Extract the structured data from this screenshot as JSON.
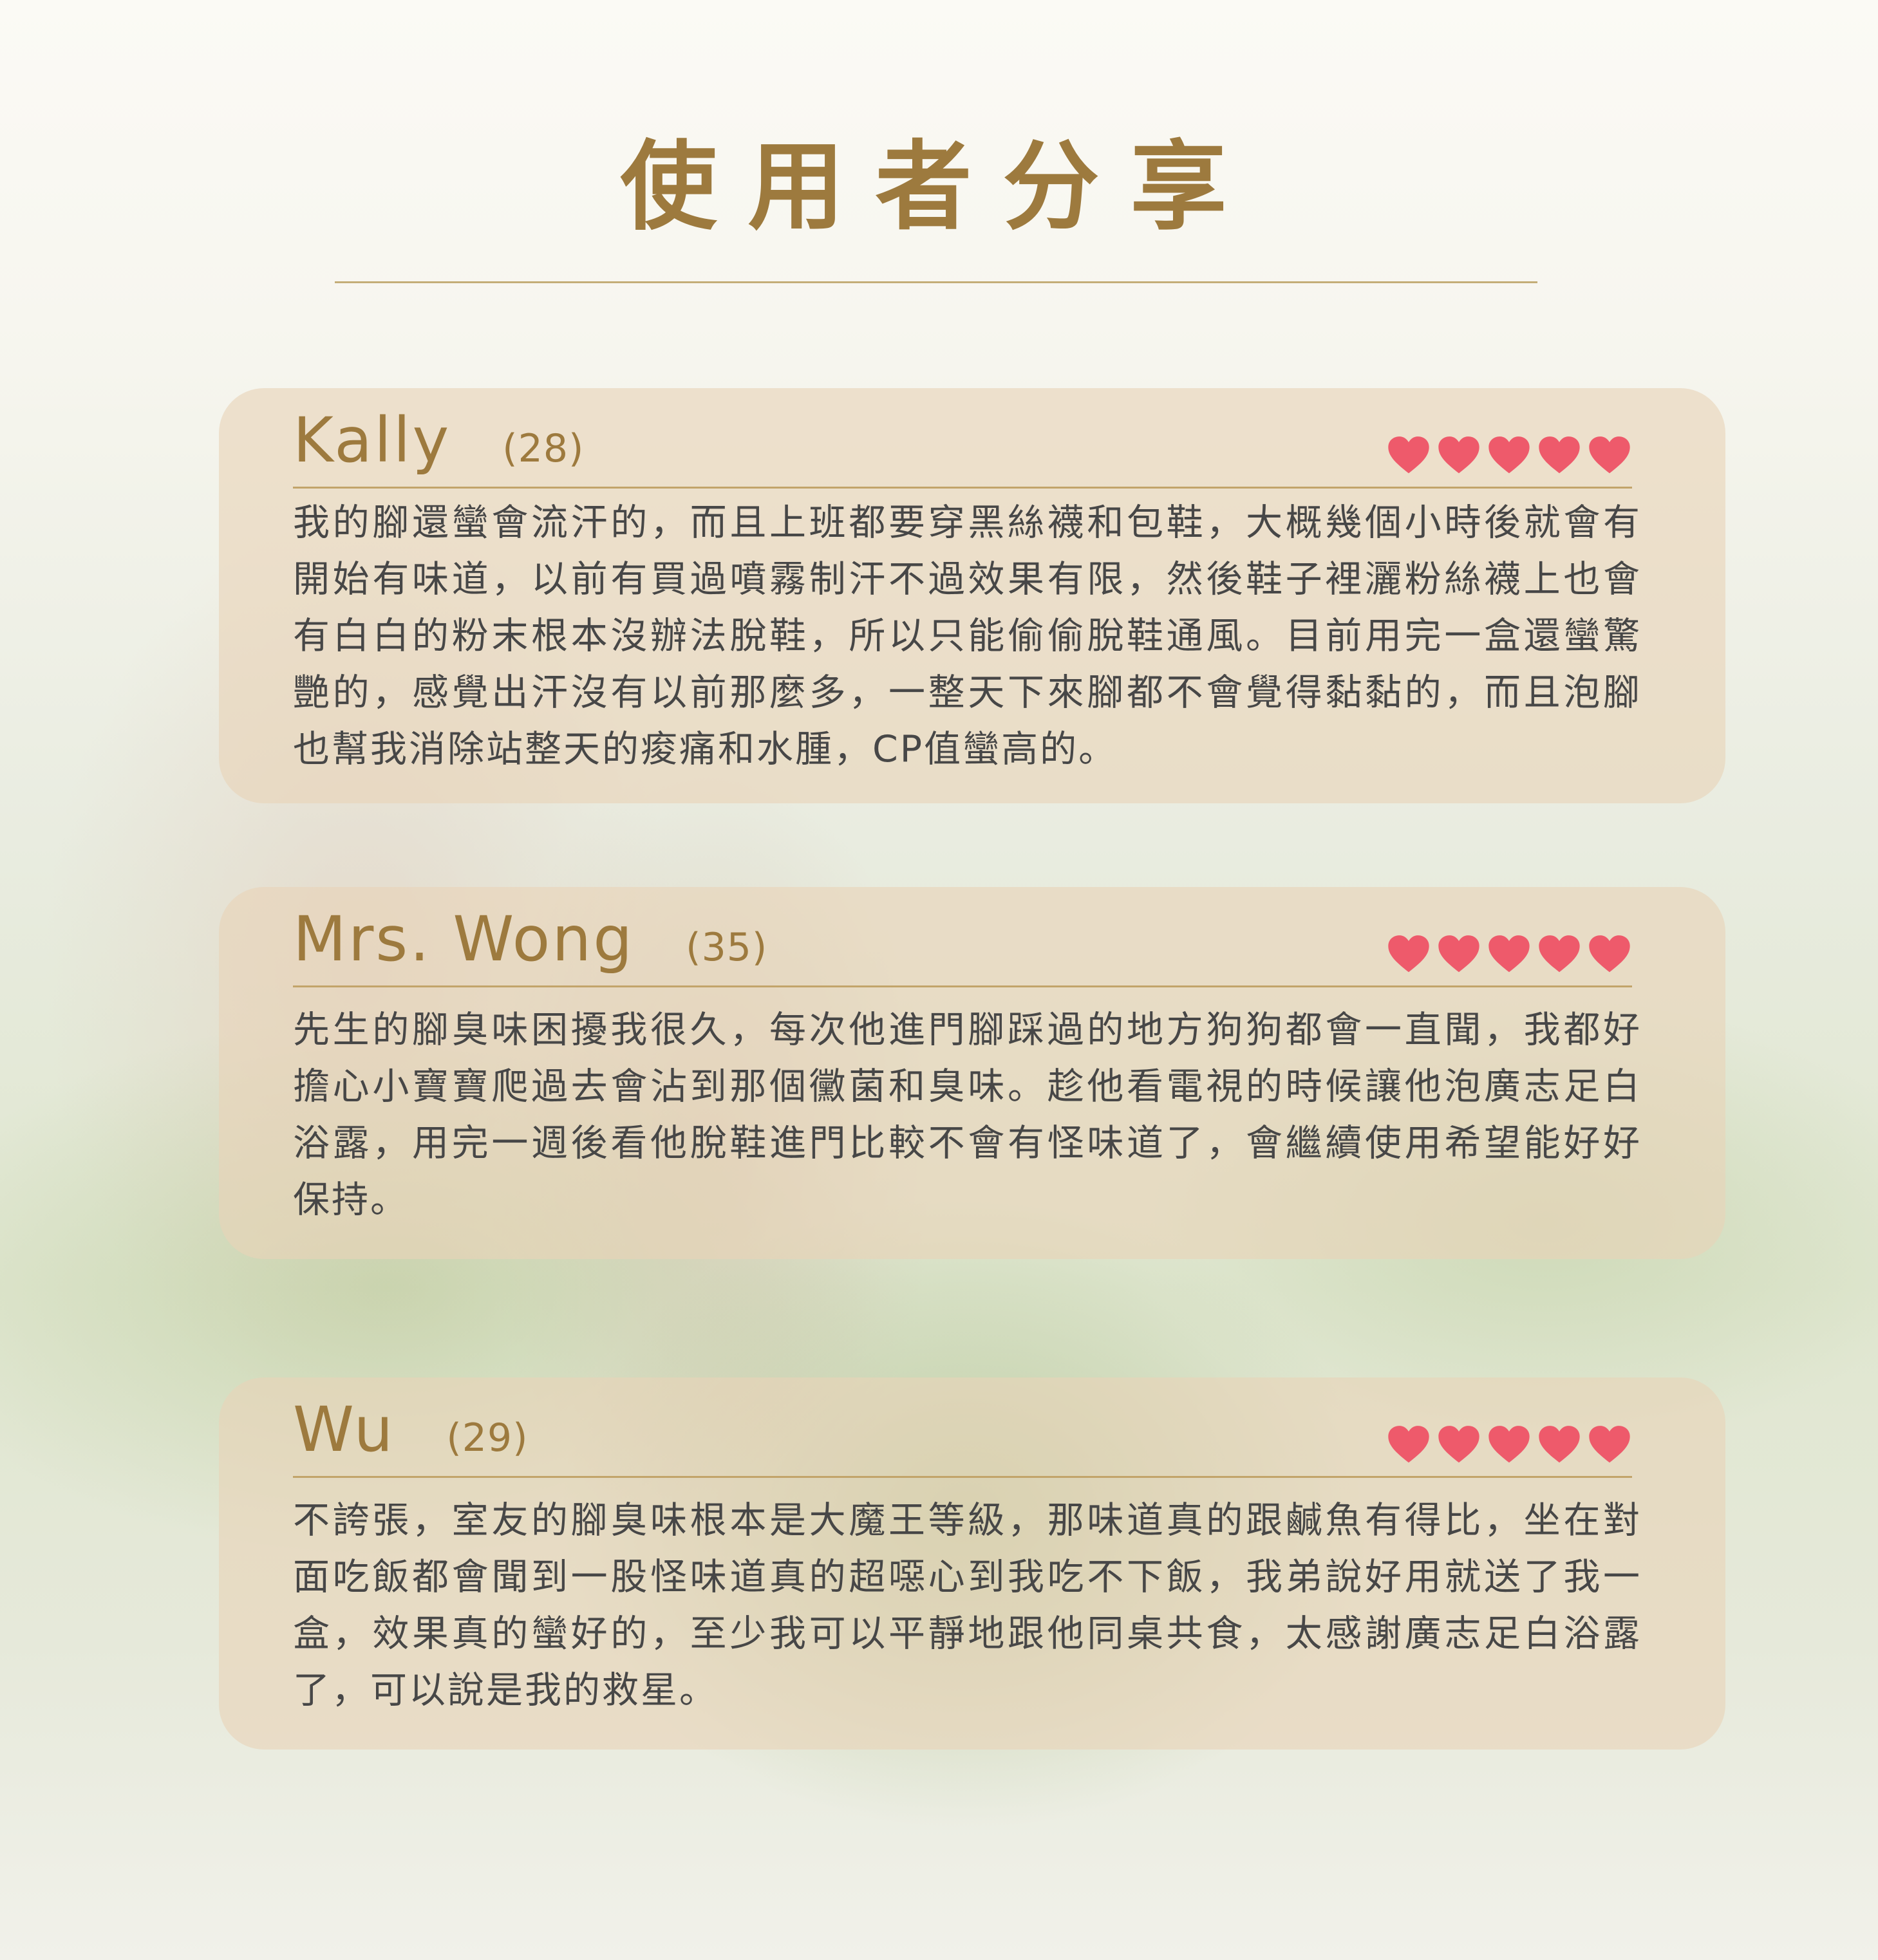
{
  "page": {
    "title": "使用者分享"
  },
  "colors": {
    "accent": "#9d7a3e",
    "heart": "#ee5a6b",
    "card": "#e8d4b8",
    "text": "#474747"
  },
  "reviews": [
    {
      "name": "Kally",
      "age": "(28)",
      "rating": 5,
      "icon": "heart-icon",
      "text": "我的腳還蠻會流汗的，而且上班都要穿黑絲襪和包鞋，大概幾個小時後就會有開始有味道，以前有買過噴霧制汗不過效果有限，然後鞋子裡灑粉絲襪上也會有白白的粉末根本沒辦法脫鞋，所以只能偷偷脫鞋通風。目前用完一盒還蠻驚艷的，感覺出汗沒有以前那麼多，一整天下來腳都不會覺得黏黏的，而且泡腳也幫我消除站整天的痠痛和水腫，CP值蠻高的。"
    },
    {
      "name": "Mrs. Wong",
      "age": "(35)",
      "rating": 5,
      "icon": "heart-icon",
      "text": "先生的腳臭味困擾我很久，每次他進門腳踩過的地方狗狗都會一直聞，我都好擔心小寶寶爬過去會沾到那個黴菌和臭味。趁他看電視的時候讓他泡廣志足白浴露，用完一週後看他脫鞋進門比較不會有怪味道了，會繼續使用希望能好好保持。"
    },
    {
      "name": "Wu",
      "age": "(29)",
      "rating": 5,
      "icon": "heart-icon",
      "text": "不誇張，室友的腳臭味根本是大魔王等級，那味道真的跟鹹魚有得比，坐在對面吃飯都會聞到一股怪味道真的超噁心到我吃不下飯，我弟說好用就送了我一盒，效果真的蠻好的，至少我可以平靜地跟他同桌共食，太感謝廣志足白浴露了，可以說是我的救星。"
    }
  ]
}
